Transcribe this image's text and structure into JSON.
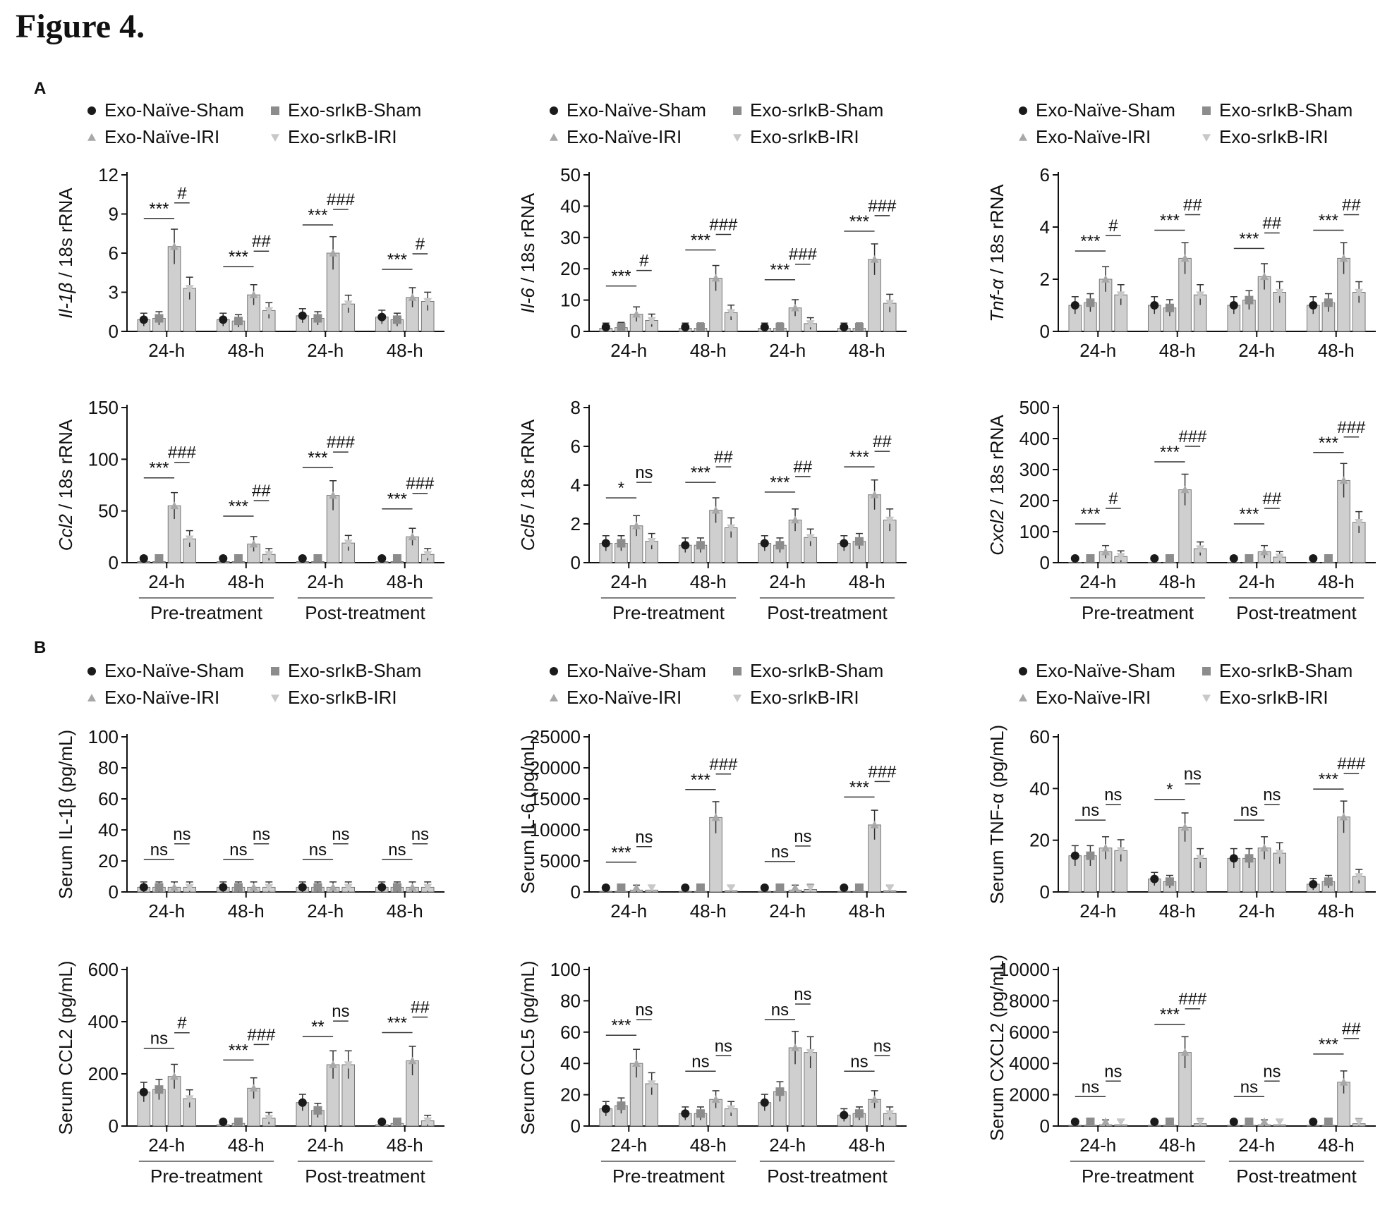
{
  "figure_title": "Figure 4.",
  "panel_labels": [
    "A",
    "B"
  ],
  "legend": {
    "entries": [
      "Exo-Naïve-Sham",
      "Exo-srIκB-Sham",
      "Exo-Naïve-IRI",
      "Exo-srIκB-IRI"
    ],
    "colors": [
      "#1a1a1a",
      "#8c8c8c",
      "#a8a8a8",
      "#c8c8c8"
    ],
    "markers": [
      "circle",
      "square",
      "triangle-up",
      "triangle-down"
    ]
  },
  "chart_data": [
    {
      "type": "bar",
      "panel": "A",
      "ylabel_italic": "Il-1β",
      "ylabel_rest": " / 18s rRNA",
      "ylim": [
        0,
        12
      ],
      "yticks": [
        0,
        3,
        6,
        9,
        12
      ],
      "categories": [
        "24-h",
        "48-h",
        "24-h",
        "48-h"
      ],
      "groups": [
        "Pre-treatment",
        "Post-treatment"
      ],
      "series": [
        {
          "name": "Exo-Naïve-Sham",
          "values": [
            0.9,
            0.9,
            1.2,
            1.1
          ]
        },
        {
          "name": "Exo-srIκB-Sham",
          "values": [
            1.0,
            0.8,
            1.0,
            0.9
          ]
        },
        {
          "name": "Exo-Naïve-IRI",
          "values": [
            6.5,
            2.8,
            6.0,
            2.6
          ]
        },
        {
          "name": "Exo-srIκB-IRI",
          "values": [
            3.3,
            1.6,
            2.1,
            2.3
          ]
        }
      ],
      "significance": [
        [
          "***",
          "#"
        ],
        [
          "***",
          "##"
        ],
        [
          "***",
          "###"
        ],
        [
          "***",
          "#"
        ]
      ]
    },
    {
      "type": "bar",
      "panel": "A",
      "ylabel_italic": "Il-6",
      "ylabel_rest": " / 18s rRNA",
      "ylim": [
        0,
        50
      ],
      "yticks": [
        0,
        10,
        20,
        30,
        40,
        50
      ],
      "categories": [
        "24-h",
        "48-h",
        "24-h",
        "48-h"
      ],
      "groups": [
        "Pre-treatment",
        "Post-treatment"
      ],
      "series": [
        {
          "name": "Exo-Naïve-Sham",
          "values": [
            1.0,
            1.0,
            1.0,
            1.0
          ]
        },
        {
          "name": "Exo-srIκB-Sham",
          "values": [
            1.2,
            1.0,
            1.0,
            1.0
          ]
        },
        {
          "name": "Exo-Naïve-IRI",
          "values": [
            5.5,
            17.0,
            7.5,
            23.0
          ]
        },
        {
          "name": "Exo-srIκB-IRI",
          "values": [
            3.5,
            6.0,
            2.5,
            9.0
          ]
        }
      ],
      "significance": [
        [
          "***",
          "#"
        ],
        [
          "***",
          "###"
        ],
        [
          "***",
          "###"
        ],
        [
          "***",
          "###"
        ]
      ]
    },
    {
      "type": "bar",
      "panel": "A",
      "ylabel_italic": "Tnf-α",
      "ylabel_rest": " / 18s rRNA",
      "ylim": [
        0,
        6
      ],
      "yticks": [
        0,
        2,
        4,
        6
      ],
      "categories": [
        "24-h",
        "48-h",
        "24-h",
        "48-h"
      ],
      "groups": [
        "Pre-treatment",
        "Post-treatment"
      ],
      "series": [
        {
          "name": "Exo-Naïve-Sham",
          "values": [
            1.0,
            1.0,
            1.0,
            1.0
          ]
        },
        {
          "name": "Exo-srIκB-Sham",
          "values": [
            1.1,
            0.9,
            1.2,
            1.1
          ]
        },
        {
          "name": "Exo-Naïve-IRI",
          "values": [
            2.0,
            2.8,
            2.1,
            2.8
          ]
        },
        {
          "name": "Exo-srIκB-IRI",
          "values": [
            1.4,
            1.4,
            1.5,
            1.5
          ]
        }
      ],
      "significance": [
        [
          "***",
          "#"
        ],
        [
          "***",
          "##"
        ],
        [
          "***",
          "##"
        ],
        [
          "***",
          "##"
        ]
      ]
    },
    {
      "type": "bar",
      "panel": "A",
      "ylabel_italic": "Ccl2",
      "ylabel_rest": " / 18s rRNA",
      "ylim": [
        0,
        150
      ],
      "yticks": [
        0,
        50,
        100,
        150
      ],
      "categories": [
        "24-h",
        "48-h",
        "24-h",
        "48-h"
      ],
      "groups": [
        "Pre-treatment",
        "Post-treatment"
      ],
      "series": [
        {
          "name": "Exo-Naïve-Sham",
          "values": [
            1.0,
            1.0,
            1.0,
            1.0
          ]
        },
        {
          "name": "Exo-srIκB-Sham",
          "values": [
            1.0,
            1.0,
            1.0,
            1.0
          ]
        },
        {
          "name": "Exo-Naïve-IRI",
          "values": [
            55,
            18,
            65,
            25
          ]
        },
        {
          "name": "Exo-srIκB-IRI",
          "values": [
            23,
            8,
            19,
            8
          ]
        }
      ],
      "significance": [
        [
          "***",
          "###"
        ],
        [
          "***",
          "##"
        ],
        [
          "***",
          "###"
        ],
        [
          "***",
          "###"
        ]
      ]
    },
    {
      "type": "bar",
      "panel": "A",
      "ylabel_italic": "Ccl5",
      "ylabel_rest": " / 18s rRNA",
      "ylim": [
        0,
        8
      ],
      "yticks": [
        0,
        2,
        4,
        6,
        8
      ],
      "categories": [
        "24-h",
        "48-h",
        "24-h",
        "48-h"
      ],
      "groups": [
        "Pre-treatment",
        "Post-treatment"
      ],
      "series": [
        {
          "name": "Exo-Naïve-Sham",
          "values": [
            1.0,
            0.9,
            1.0,
            1.0
          ]
        },
        {
          "name": "Exo-srIκB-Sham",
          "values": [
            1.0,
            0.9,
            0.9,
            1.1
          ]
        },
        {
          "name": "Exo-Naïve-IRI",
          "values": [
            1.9,
            2.7,
            2.2,
            3.5
          ]
        },
        {
          "name": "Exo-srIκB-IRI",
          "values": [
            1.1,
            1.8,
            1.3,
            2.2
          ]
        }
      ],
      "significance": [
        [
          "*",
          "ns"
        ],
        [
          "***",
          "##"
        ],
        [
          "***",
          "##"
        ],
        [
          "***",
          "##"
        ]
      ]
    },
    {
      "type": "bar",
      "panel": "A",
      "ylabel_italic": "Cxcl2",
      "ylabel_rest": " / 18s rRNA",
      "ylim": [
        0,
        500
      ],
      "yticks": [
        0,
        100,
        200,
        300,
        400,
        500
      ],
      "categories": [
        "24-h",
        "48-h",
        "24-h",
        "48-h"
      ],
      "groups": [
        "Pre-treatment",
        "Post-treatment"
      ],
      "series": [
        {
          "name": "Exo-Naïve-Sham",
          "values": [
            1,
            1,
            1,
            1
          ]
        },
        {
          "name": "Exo-srIκB-Sham",
          "values": [
            1,
            1,
            1,
            1
          ]
        },
        {
          "name": "Exo-Naïve-IRI",
          "values": [
            35,
            235,
            35,
            265
          ]
        },
        {
          "name": "Exo-srIκB-IRI",
          "values": [
            20,
            45,
            18,
            130
          ]
        }
      ],
      "significance": [
        [
          "***",
          "#"
        ],
        [
          "***",
          "###"
        ],
        [
          "***",
          "##"
        ],
        [
          "***",
          "###"
        ]
      ]
    },
    {
      "type": "bar",
      "panel": "B",
      "ylabel_italic": "",
      "ylabel_rest": "Serum IL-1β (pg/mL)",
      "ylim": [
        0,
        100
      ],
      "yticks": [
        0,
        20,
        40,
        60,
        80,
        100
      ],
      "categories": [
        "24-h",
        "48-h",
        "24-h",
        "48-h"
      ],
      "groups": [
        "Pre-treatment",
        "Post-treatment"
      ],
      "series": [
        {
          "name": "Exo-Naïve-Sham",
          "values": [
            3,
            3,
            3,
            3
          ]
        },
        {
          "name": "Exo-srIκB-Sham",
          "values": [
            3,
            3,
            3,
            3
          ]
        },
        {
          "name": "Exo-Naïve-IRI",
          "values": [
            3,
            3,
            3,
            3
          ]
        },
        {
          "name": "Exo-srIκB-IRI",
          "values": [
            3,
            3,
            3,
            3
          ]
        }
      ],
      "significance": [
        [
          "ns",
          "ns"
        ],
        [
          "ns",
          "ns"
        ],
        [
          "ns",
          "ns"
        ],
        [
          "ns",
          "ns"
        ]
      ]
    },
    {
      "type": "bar",
      "panel": "B",
      "ylabel_italic": "",
      "ylabel_rest": "Serum IL-6 (pg/mL)",
      "ylim": [
        0,
        25000
      ],
      "yticks": [
        0,
        5000,
        10000,
        15000,
        20000,
        25000
      ],
      "categories": [
        "24-h",
        "48-h",
        "24-h",
        "48-h"
      ],
      "groups": [
        "Pre-treatment",
        "Post-treatment"
      ],
      "series": [
        {
          "name": "Exo-Naïve-Sham",
          "values": [
            100,
            100,
            100,
            100
          ]
        },
        {
          "name": "Exo-srIκB-Sham",
          "values": [
            100,
            100,
            100,
            100
          ]
        },
        {
          "name": "Exo-Naïve-IRI",
          "values": [
            300,
            12000,
            300,
            10800
          ]
        },
        {
          "name": "Exo-srIκB-IRI",
          "values": [
            300,
            200,
            400,
            200
          ]
        }
      ],
      "significance": [
        [
          "***",
          "ns"
        ],
        [
          "***",
          "###"
        ],
        [
          "ns",
          "ns"
        ],
        [
          "***",
          "###"
        ]
      ]
    },
    {
      "type": "bar",
      "panel": "B",
      "ylabel_italic": "",
      "ylabel_rest": "Serum TNF-α (pg/mL)",
      "ylim": [
        0,
        60
      ],
      "yticks": [
        0,
        20,
        40,
        60
      ],
      "categories": [
        "24-h",
        "48-h",
        "24-h",
        "48-h"
      ],
      "groups": [
        "Pre-treatment",
        "Post-treatment"
      ],
      "series": [
        {
          "name": "Exo-Naïve-Sham",
          "values": [
            14,
            5,
            13,
            3
          ]
        },
        {
          "name": "Exo-srIκB-Sham",
          "values": [
            14,
            4,
            13,
            4
          ]
        },
        {
          "name": "Exo-Naïve-IRI",
          "values": [
            17,
            25,
            17,
            29
          ]
        },
        {
          "name": "Exo-srIκB-IRI",
          "values": [
            16,
            13,
            15,
            6
          ]
        }
      ],
      "significance": [
        [
          "ns",
          "ns"
        ],
        [
          "*",
          "ns"
        ],
        [
          "ns",
          "ns"
        ],
        [
          "***",
          "###"
        ]
      ]
    },
    {
      "type": "bar",
      "panel": "B",
      "ylabel_italic": "",
      "ylabel_rest": "Serum CCL2 (pg/mL)",
      "ylim": [
        0,
        600
      ],
      "yticks": [
        0,
        200,
        400,
        600
      ],
      "categories": [
        "24-h",
        "48-h",
        "24-h",
        "48-h"
      ],
      "groups": [
        "Pre-treatment",
        "Post-treatment"
      ],
      "series": [
        {
          "name": "Exo-Naïve-Sham",
          "values": [
            130,
            5,
            90,
            5
          ]
        },
        {
          "name": "Exo-srIκB-Sham",
          "values": [
            140,
            10,
            60,
            10
          ]
        },
        {
          "name": "Exo-Naïve-IRI",
          "values": [
            190,
            145,
            235,
            250
          ]
        },
        {
          "name": "Exo-srIκB-IRI",
          "values": [
            105,
            30,
            235,
            20
          ]
        }
      ],
      "significance": [
        [
          "ns",
          "#"
        ],
        [
          "***",
          "###"
        ],
        [
          "**",
          "ns"
        ],
        [
          "***",
          "##"
        ]
      ]
    },
    {
      "type": "bar",
      "panel": "B",
      "ylabel_italic": "",
      "ylabel_rest": "Serum CCL5 (pg/mL)",
      "ylim": [
        0,
        100
      ],
      "yticks": [
        0,
        20,
        40,
        60,
        80,
        100
      ],
      "categories": [
        "24-h",
        "48-h",
        "24-h",
        "48-h"
      ],
      "groups": [
        "Pre-treatment",
        "Post-treatment"
      ],
      "series": [
        {
          "name": "Exo-Naïve-Sham",
          "values": [
            11,
            8,
            15,
            7
          ]
        },
        {
          "name": "Exo-srIκB-Sham",
          "values": [
            13,
            8,
            22,
            8
          ]
        },
        {
          "name": "Exo-Naïve-IRI",
          "values": [
            40,
            17,
            50,
            17
          ]
        },
        {
          "name": "Exo-srIκB-IRI",
          "values": [
            27,
            11,
            47,
            8
          ]
        }
      ],
      "significance": [
        [
          "***",
          "ns"
        ],
        [
          "ns",
          "ns"
        ],
        [
          "ns",
          "ns"
        ],
        [
          "ns",
          "ns"
        ]
      ]
    },
    {
      "type": "bar",
      "panel": "B",
      "ylabel_italic": "",
      "ylabel_rest": "Serum CXCL2 (pg/mL)",
      "ylim": [
        0,
        10000
      ],
      "yticks": [
        0,
        2000,
        4000,
        6000,
        8000,
        10000
      ],
      "categories": [
        "24-h",
        "48-h",
        "24-h",
        "48-h"
      ],
      "groups": [
        "Pre-treatment",
        "Post-treatment"
      ],
      "series": [
        {
          "name": "Exo-Naïve-Sham",
          "values": [
            50,
            50,
            50,
            50
          ]
        },
        {
          "name": "Exo-srIκB-Sham",
          "values": [
            50,
            50,
            50,
            50
          ]
        },
        {
          "name": "Exo-Naïve-IRI",
          "values": [
            80,
            4700,
            80,
            2800
          ]
        },
        {
          "name": "Exo-srIκB-IRI",
          "values": [
            80,
            150,
            80,
            150
          ]
        }
      ],
      "significance": [
        [
          "ns",
          "ns"
        ],
        [
          "***",
          "###"
        ],
        [
          "ns",
          "ns"
        ],
        [
          "***",
          "##"
        ]
      ]
    }
  ]
}
